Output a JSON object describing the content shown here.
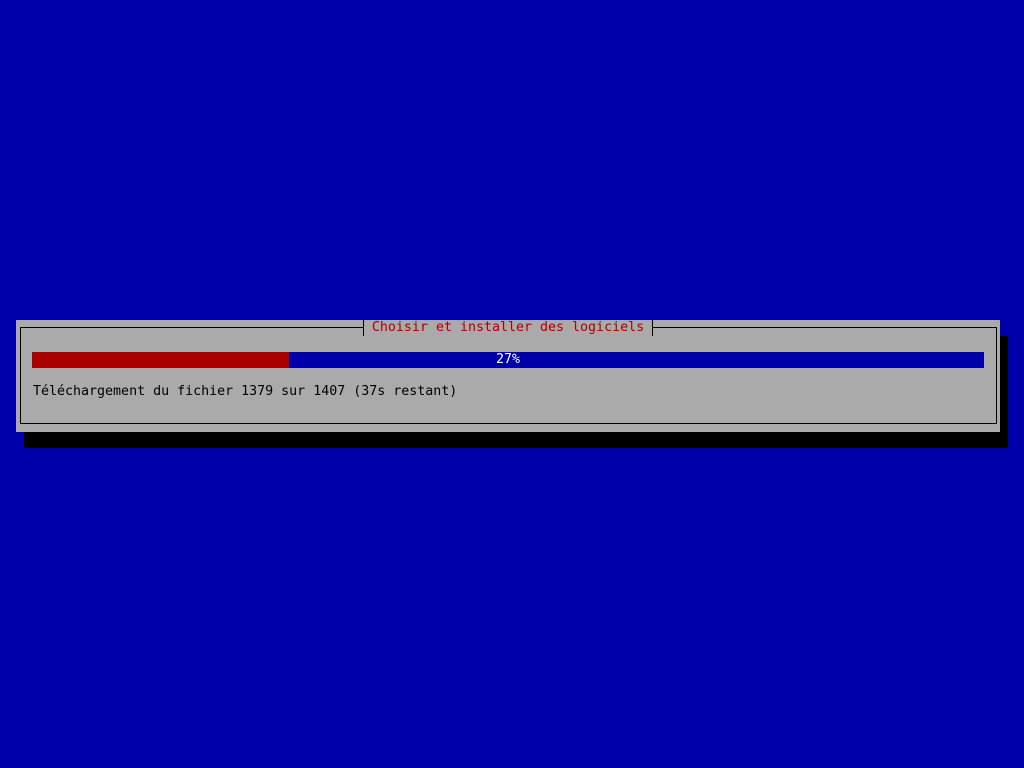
{
  "dialog": {
    "title": "Choisir et installer des logiciels",
    "progress": {
      "percent": 27,
      "label": "27%"
    },
    "message": "Téléchargement du fichier 1379 sur 1407 (37s restant)"
  },
  "colors": {
    "background": "#0000aa",
    "dialog": "#aaaaaa",
    "title": "#aa0000",
    "progress_fill": "#aa0000",
    "progress_track": "#0000aa"
  }
}
